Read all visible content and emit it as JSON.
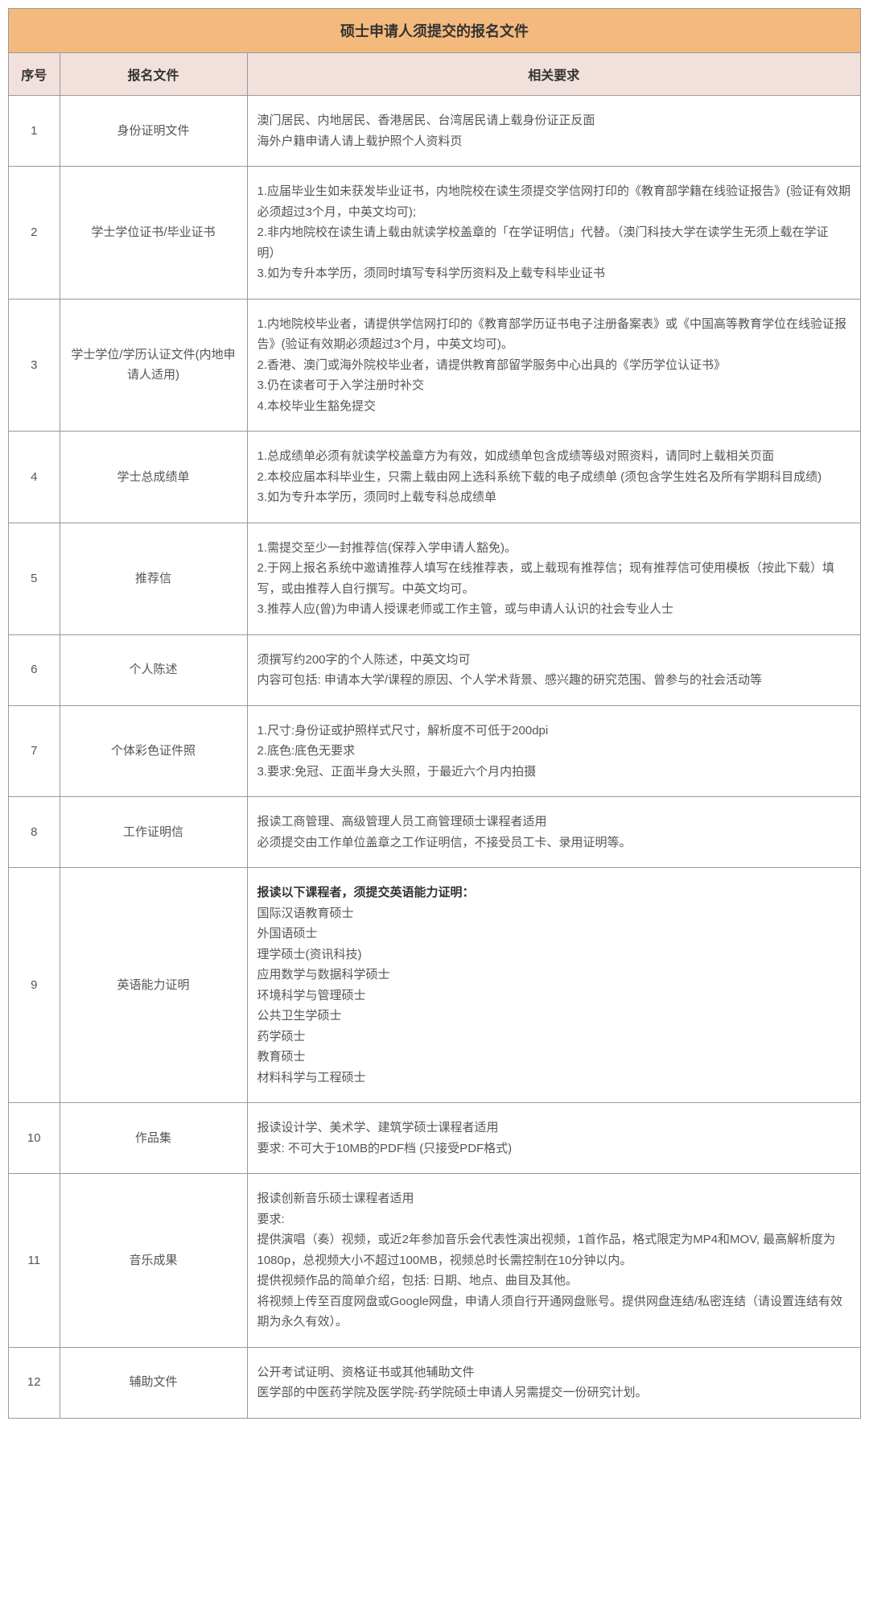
{
  "title": "硕士申请人须提交的报名文件",
  "headers": {
    "seq": "序号",
    "doc": "报名文件",
    "req": "相关要求"
  },
  "colors": {
    "title_bg": "#f4b97d",
    "header_bg": "#f2e0dc",
    "border": "#999999",
    "text": "#555555",
    "title_text": "#333333"
  },
  "rows": [
    {
      "seq": "1",
      "doc": "身份证明文件",
      "req": "澳门居民、内地居民、香港居民、台湾居民请上载身份证正反面\n海外户籍申请人请上载护照个人资料页"
    },
    {
      "seq": "2",
      "doc": "学士学位证书/毕业证书",
      "req": "1.应届毕业生如未获发毕业证书，内地院校在读生须提交学信网打印的《教育部学籍在线验证报告》(验证有效期必须超过3个月，中英文均可);\n2.非内地院校在读生请上载由就读学校盖章的「在学证明信」代替。（澳门科技大学在读学生无须上载在学证明）\n3.如为专升本学历，须同时填写专科学历资料及上载专科毕业证书"
    },
    {
      "seq": "3",
      "doc": "学士学位/学历认证文件(内地申请人适用)",
      "req": "1.内地院校毕业者，请提供学信网打印的《教育部学历证书电子注册备案表》或《中国高等教育学位在线验证报告》(验证有效期必须超过3个月，中英文均可)。\n2.香港、澳门或海外院校毕业者，请提供教育部留学服务中心出具的《学历学位认证书》\n3.仍在读者可于入学注册时补交\n4.本校毕业生豁免提交"
    },
    {
      "seq": "4",
      "doc": "学士总成绩单",
      "req": "1.总成绩单必须有就读学校盖章方为有效，如成绩单包含成绩等级对照资料，请同时上载相关页面\n2.本校应届本科毕业生，只需上载由网上选科系统下载的电子成绩单 (须包含学生姓名及所有学期科目成绩)\n3.如为专升本学历，须同时上载专科总成绩单"
    },
    {
      "seq": "5",
      "doc": "推荐信",
      "req": "1.需提交至少一封推荐信(保荐入学申请人豁免)。\n2.于网上报名系统中邀请推荐人填写在线推荐表，或上载现有推荐信；现有推荐信可使用模板（按此下载）填写，或由推荐人自行撰写。中英文均可。\n3.推荐人应(曾)为申请人授课老师或工作主管，或与申请人认识的社会专业人士"
    },
    {
      "seq": "6",
      "doc": "个人陈述",
      "req": "须撰写约200字的个人陈述，中英文均可\n内容可包括: 申请本大学/课程的原因、个人学术背景、感兴趣的研究范围、曾参与的社会活动等"
    },
    {
      "seq": "7",
      "doc": "个体彩色证件照",
      "req": "1.尺寸:身份证或护照样式尺寸，解析度不可低于200dpi\n2.底色:底色无要求\n3.要求:免冠、正面半身大头照，于最近六个月内拍摄"
    },
    {
      "seq": "8",
      "doc": "工作证明信",
      "req": "报读工商管理、高级管理人员工商管理硕士课程者适用\n必须提交由工作单位盖章之工作证明信，不接受员工卡、录用证明等。"
    },
    {
      "seq": "9",
      "doc": "英语能力证明",
      "req_bold": "报读以下课程者，须提交英语能力证明：",
      "req_rest": "国际汉语教育硕士\n外国语硕士\n理学硕士(资讯科技)\n应用数学与数据科学硕士\n环境科学与管理硕士\n公共卫生学硕士\n药学硕士\n教育硕士\n材料科学与工程硕士"
    },
    {
      "seq": "10",
      "doc": "作品集",
      "req": "报读设计学、美术学、建筑学硕士课程者适用\n要求: 不可大于10MB的PDF档 (只接受PDF格式)"
    },
    {
      "seq": "11",
      "doc": "音乐成果",
      "req": "报读创新音乐硕士课程者适用\n要求:\n提供演唱（奏）视频，或近2年参加音乐会代表性演出视频，1首作品，格式限定为MP4和MOV, 最高解析度为1080p，总视频大小不超过100MB，视频总时长需控制在10分钟以内。\n提供视频作品的简单介绍，包括: 日期、地点、曲目及其他。\n将视频上传至百度网盘或Google网盘，申请人须自行开通网盘账号。提供网盘连结/私密连结（请设置连结有效期为永久有效）。"
    },
    {
      "seq": "12",
      "doc": "辅助文件",
      "req": "公开考试证明、资格证书或其他辅助文件\n医学部的中医药学院及医学院-药学院硕士申请人另需提交一份研究计划。"
    }
  ]
}
